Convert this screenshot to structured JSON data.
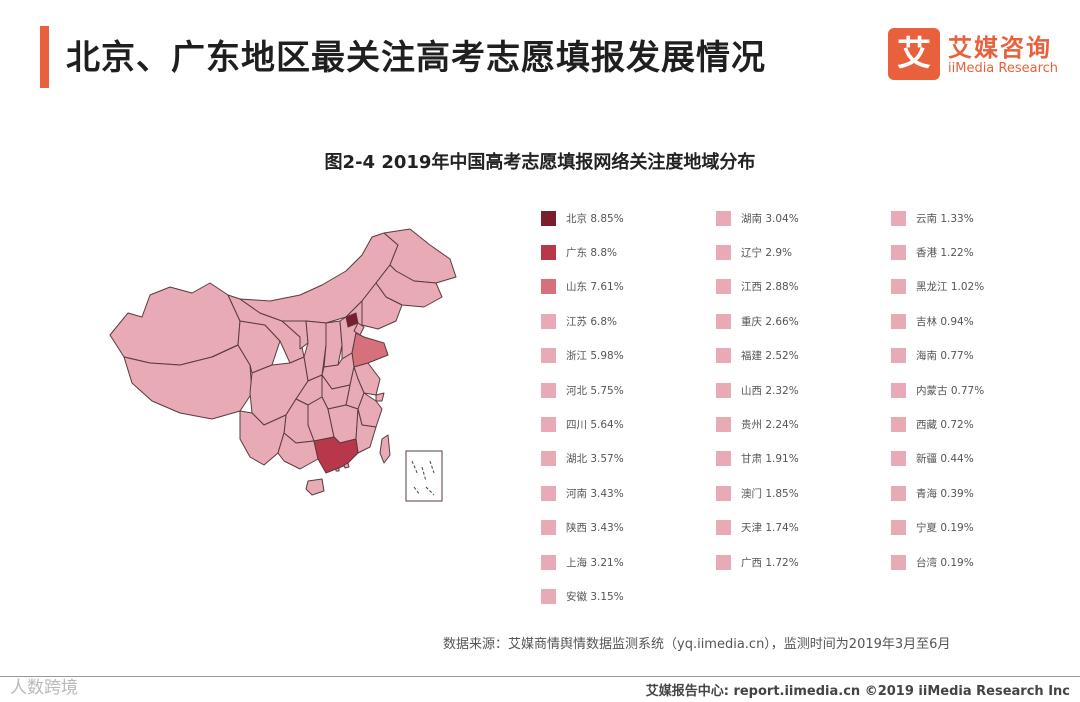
{
  "header": {
    "title": "北京、广东地区最关注高考志愿填报发展情况",
    "logo_mark": "艾",
    "logo_cn": "艾媒咨询",
    "logo_en": "iiMedia Research"
  },
  "chart_data": {
    "type": "map",
    "title": "图2-4 2019年中国高考志愿填报网络关注度地域分布",
    "unit": "%",
    "regions": [
      {
        "name": "北京",
        "value": 8.85,
        "label": "8.85%",
        "color": "#7a1e2c"
      },
      {
        "name": "广东",
        "value": 8.8,
        "label": "8.8%",
        "color": "#b8374a"
      },
      {
        "name": "山东",
        "value": 7.61,
        "label": "7.61%",
        "color": "#d6707a"
      },
      {
        "name": "江苏",
        "value": 6.8,
        "label": "6.8%",
        "color": "#e8aab4"
      },
      {
        "name": "浙江",
        "value": 5.98,
        "label": "5.98%",
        "color": "#e8aab4"
      },
      {
        "name": "河北",
        "value": 5.75,
        "label": "5.75%",
        "color": "#e8aab4"
      },
      {
        "name": "四川",
        "value": 5.64,
        "label": "5.64%",
        "color": "#e8aab4"
      },
      {
        "name": "湖北",
        "value": 3.57,
        "label": "3.57%",
        "color": "#e8aab4"
      },
      {
        "name": "河南",
        "value": 3.43,
        "label": "3.43%",
        "color": "#e8aab4"
      },
      {
        "name": "陕西",
        "value": 3.43,
        "label": "3.43%",
        "color": "#e8aab4"
      },
      {
        "name": "上海",
        "value": 3.21,
        "label": "3.21%",
        "color": "#e8aab4"
      },
      {
        "name": "安徽",
        "value": 3.15,
        "label": "3.15%",
        "color": "#e8aab4"
      },
      {
        "name": "湖南",
        "value": 3.04,
        "label": "3.04%",
        "color": "#e8aab4"
      },
      {
        "name": "辽宁",
        "value": 2.9,
        "label": "2.9%",
        "color": "#e8aab4"
      },
      {
        "name": "江西",
        "value": 2.88,
        "label": "2.88%",
        "color": "#e8aab4"
      },
      {
        "name": "重庆",
        "value": 2.66,
        "label": "2.66%",
        "color": "#e8aab4"
      },
      {
        "name": "福建",
        "value": 2.52,
        "label": "2.52%",
        "color": "#e8aab4"
      },
      {
        "name": "山西",
        "value": 2.32,
        "label": "2.32%",
        "color": "#e8aab4"
      },
      {
        "name": "贵州",
        "value": 2.24,
        "label": "2.24%",
        "color": "#e8aab4"
      },
      {
        "name": "甘肃",
        "value": 1.91,
        "label": "1.91%",
        "color": "#e8aab4"
      },
      {
        "name": "澳门",
        "value": 1.85,
        "label": "1.85%",
        "color": "#e8aab4"
      },
      {
        "name": "天津",
        "value": 1.74,
        "label": "1.74%",
        "color": "#e8aab4"
      },
      {
        "name": "广西",
        "value": 1.72,
        "label": "1.72%",
        "color": "#e8aab4"
      },
      {
        "name": "云南",
        "value": 1.33,
        "label": "1.33%",
        "color": "#e8aab4"
      },
      {
        "name": "香港",
        "value": 1.22,
        "label": "1.22%",
        "color": "#e8aab4"
      },
      {
        "name": "黑龙江",
        "value": 1.02,
        "label": "1.02%",
        "color": "#e8aab4"
      },
      {
        "name": "吉林",
        "value": 0.94,
        "label": "0.94%",
        "color": "#e8aab4"
      },
      {
        "name": "海南",
        "value": 0.77,
        "label": "0.77%",
        "color": "#e8aab4"
      },
      {
        "name": "内蒙古",
        "value": 0.77,
        "label": "0.77%",
        "color": "#e8aab4"
      },
      {
        "name": "西藏",
        "value": 0.72,
        "label": "0.72%",
        "color": "#e8aab4"
      },
      {
        "name": "新疆",
        "value": 0.44,
        "label": "0.44%",
        "color": "#e8aab4"
      },
      {
        "name": "青海",
        "value": 0.39,
        "label": "0.39%",
        "color": "#e8aab4"
      },
      {
        "name": "宁夏",
        "value": 0.19,
        "label": "0.19%",
        "color": "#e8aab4"
      },
      {
        "name": "台湾",
        "value": 0.19,
        "label": "0.19%",
        "color": "#e8aab4"
      }
    ]
  },
  "map_colors": {
    "base": "#e8c3cb",
    "border": "#5a3a40"
  },
  "source_note": "数据来源：艾媒商情舆情数据监测系统（yq.iimedia.cn），监测时间为2019年3月至6月",
  "footer": {
    "watermark": "人数跨境",
    "text": "艾媒报告中心: report.iimedia.cn  ©2019  iiMedia Research  Inc"
  }
}
